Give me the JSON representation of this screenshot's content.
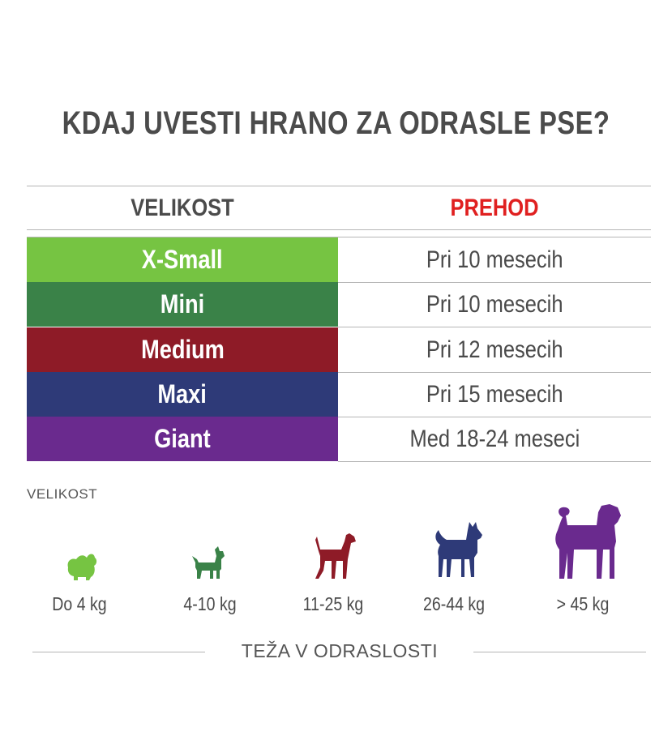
{
  "title": "KDAJ UVESTI HRANO ZA ODRASLE PSE?",
  "table": {
    "header_size": "VELIKOST",
    "header_transition": "PREHOD",
    "header_transition_color": "#e02020",
    "rows": [
      {
        "size": "X-Small",
        "transition": "Pri 10 mesecih",
        "color": "#76c442"
      },
      {
        "size": "Mini",
        "transition": "Pri 10 mesecih",
        "color": "#3a8248"
      },
      {
        "size": "Medium",
        "transition": "Pri 12 mesecih",
        "color": "#8e1b27"
      },
      {
        "size": "Maxi",
        "transition": "Pri 15 mesecih",
        "color": "#2e3a78"
      },
      {
        "size": "Giant",
        "transition": "Med 18-24 meseci",
        "color": "#6a2a8e"
      }
    ]
  },
  "legend": {
    "label": "VELIKOST",
    "dogs": [
      {
        "icon": "small-fluffy-dog-icon",
        "weight": "Do 4 kg",
        "color": "#76c442"
      },
      {
        "icon": "terrier-dog-icon",
        "weight": "4-10 kg",
        "color": "#3a8248"
      },
      {
        "icon": "medium-dog-icon",
        "weight": "11-25 kg",
        "color": "#8e1b27"
      },
      {
        "icon": "husky-dog-icon",
        "weight": "26-44 kg",
        "color": "#2e3a78"
      },
      {
        "icon": "large-dog-icon",
        "weight": "> 45 kg",
        "color": "#6a2a8e"
      }
    ],
    "footer": "TEŽA V ODRASLOSTI"
  }
}
